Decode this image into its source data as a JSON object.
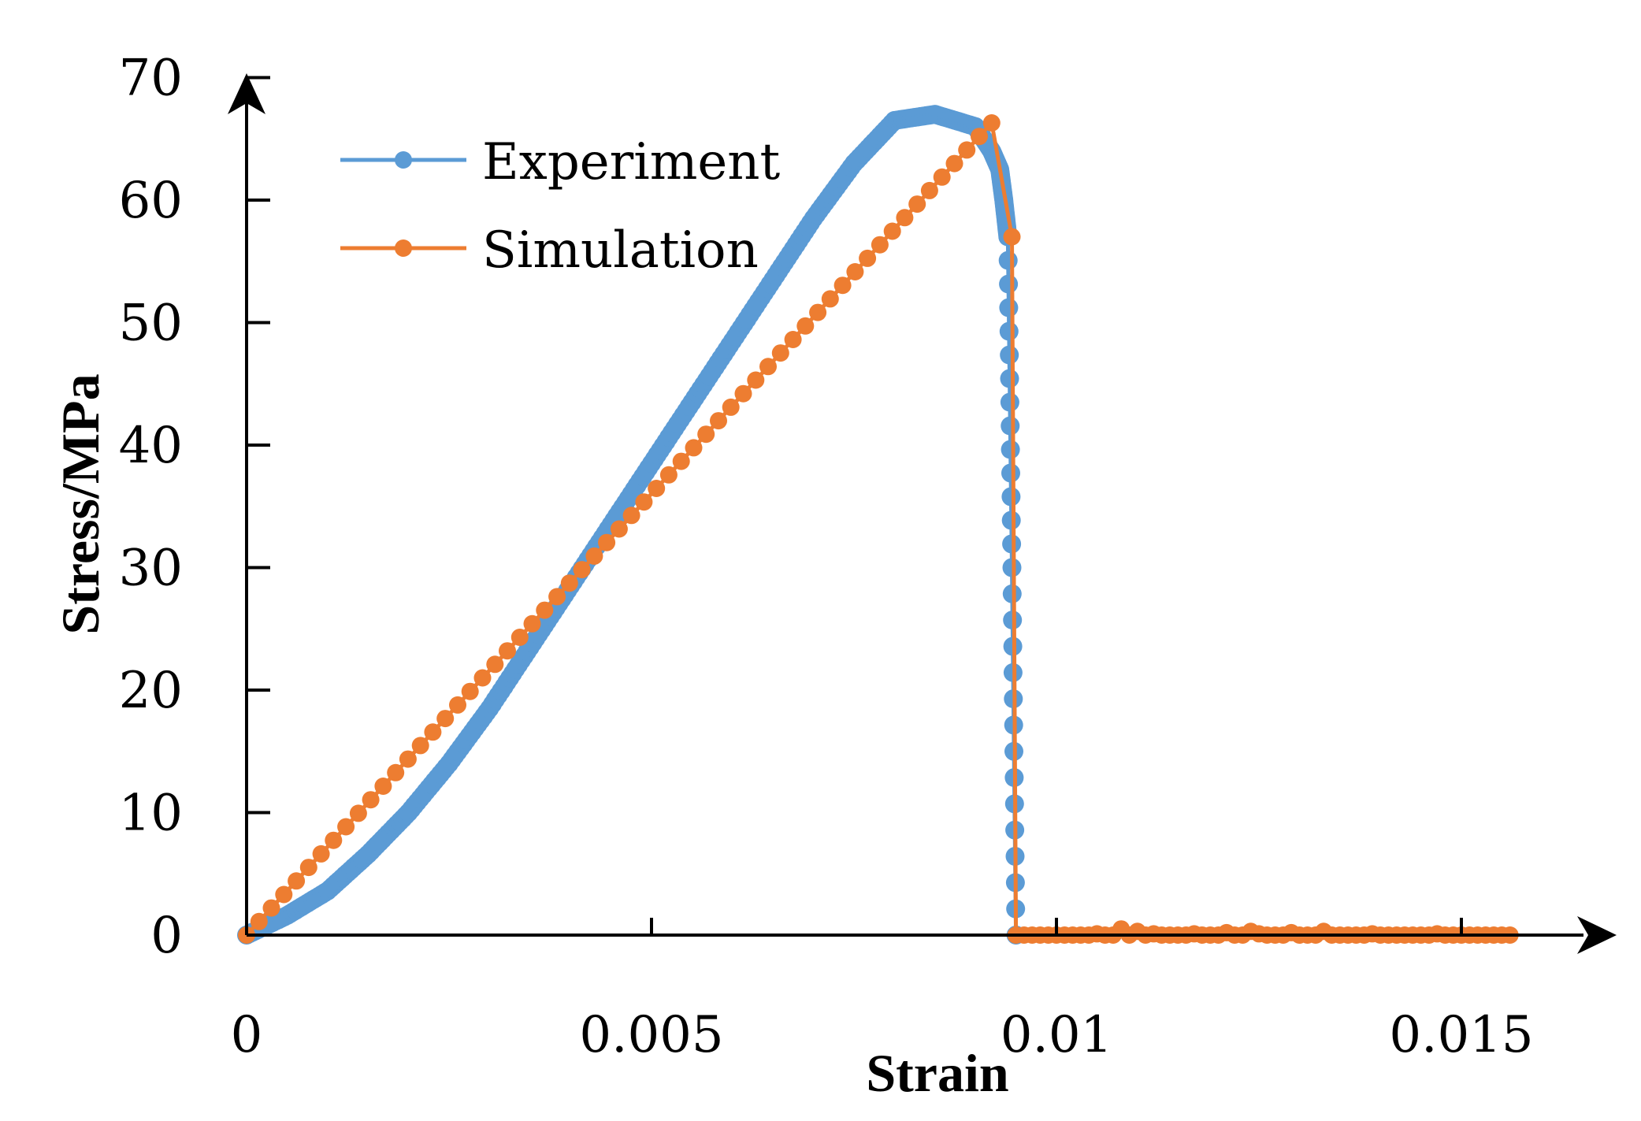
{
  "chart_data": {
    "type": "line",
    "title": "",
    "xlabel": "Strain",
    "ylabel": "Stress/MPa",
    "xlim": [
      0,
      0.0165
    ],
    "ylim": [
      0,
      70
    ],
    "x_ticks": [
      0,
      0.005,
      0.01,
      0.015
    ],
    "x_tick_labels": [
      "0",
      "0.005",
      "0.01",
      "0.015"
    ],
    "y_ticks": [
      0,
      10,
      20,
      30,
      40,
      50,
      60,
      70
    ],
    "y_tick_labels": [
      "0",
      "10",
      "20",
      "30",
      "40",
      "50",
      "60",
      "70"
    ],
    "grid": false,
    "legend_position": "top-left",
    "series": [
      {
        "name": "Experiment",
        "color": "#5B9BD5",
        "x": [
          0,
          0.0005,
          0.001,
          0.0015,
          0.002,
          0.0025,
          0.003,
          0.0035,
          0.004,
          0.0045,
          0.005,
          0.0055,
          0.006,
          0.0065,
          0.007,
          0.0075,
          0.008,
          0.0085,
          0.009,
          0.0092,
          0.0093,
          0.00935,
          0.0094,
          0.00945,
          0.0095
        ],
        "y": [
          0,
          1.6,
          3.6,
          6.6,
          10.0,
          14.0,
          18.5,
          23.5,
          28.5,
          33.5,
          38.5,
          43.5,
          48.5,
          53.5,
          58.5,
          63.0,
          66.5,
          67.0,
          66.0,
          64.0,
          62.5,
          60.0,
          57.0,
          30.0,
          0
        ]
      },
      {
        "name": "Simulation",
        "color": "#ED7D31",
        "x": [
          0,
          0.0092,
          0.00945,
          0.0095,
          0.0096,
          0.0097,
          0.0098,
          0.0099,
          0.01,
          0.0101,
          0.0102,
          0.0103,
          0.0104,
          0.0105,
          0.0106,
          0.0107,
          0.0108,
          0.0109,
          0.011,
          0.0111,
          0.0112,
          0.0113,
          0.0114,
          0.0115,
          0.0116,
          0.0117,
          0.0118,
          0.0119,
          0.012,
          0.0121,
          0.0122,
          0.0123,
          0.0124,
          0.0125,
          0.0126,
          0.0127,
          0.0128,
          0.0129,
          0.013,
          0.0131,
          0.0132,
          0.0133,
          0.0134,
          0.0135,
          0.0136,
          0.0137,
          0.0138,
          0.0139,
          0.014,
          0.0141,
          0.0142,
          0.0143,
          0.0144,
          0.0145,
          0.0146,
          0.0147,
          0.0148,
          0.0149,
          0.015,
          0.0151,
          0.0152,
          0.0153,
          0.0154,
          0.0155,
          0.0156
        ],
        "y": [
          0,
          66.3,
          57.0,
          0.0,
          0.0,
          0.0,
          0.0,
          0.0,
          0.0,
          0.0,
          0.0,
          0.0,
          0.0,
          0.1,
          0.0,
          0.0,
          0.5,
          0.0,
          0.3,
          0.0,
          0.1,
          0.0,
          0.0,
          0.0,
          0.0,
          0.1,
          0.0,
          0.0,
          0.0,
          0.2,
          0.0,
          0.0,
          0.3,
          0.1,
          0.0,
          0.0,
          0.0,
          0.2,
          0.0,
          0.0,
          0.0,
          0.3,
          0.0,
          0.0,
          0.0,
          0.0,
          0.0,
          0.1,
          0.0,
          0.0,
          0.0,
          0.0,
          0.0,
          0.0,
          0.0,
          0.1,
          0.0,
          0.0,
          0.0,
          0.0,
          0.0,
          0.0,
          0.0,
          0.0,
          0.0
        ]
      }
    ]
  }
}
